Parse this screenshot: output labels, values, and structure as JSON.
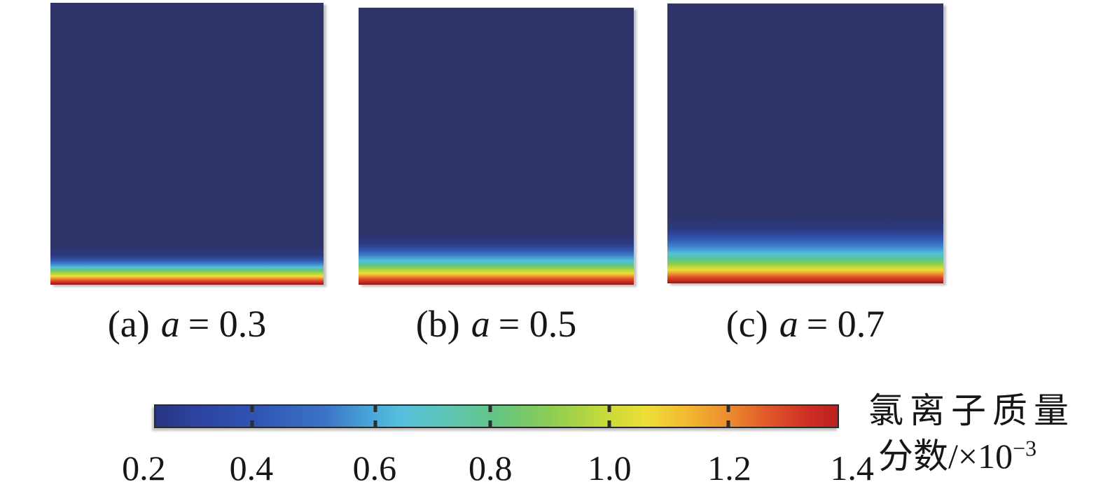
{
  "figure": {
    "background_color": "#ffffff",
    "text_color": "#161616",
    "panel_base_color": "#2e3368"
  },
  "panels": [
    {
      "id": "a",
      "marker": "(a)",
      "variable": "a",
      "eq_value": "= 0.3",
      "gradient": [
        [
          "#2e3368",
          0
        ],
        [
          "#2e3368",
          86
        ],
        [
          "#2b3a7f",
          89.5
        ],
        [
          "#2f55ae",
          91.3
        ],
        [
          "#3c7cc8",
          92.5
        ],
        [
          "#52c0da",
          93.8
        ],
        [
          "#5cc48f",
          94.6
        ],
        [
          "#7cca58",
          95.3
        ],
        [
          "#c6d93c",
          96.3
        ],
        [
          "#eede37",
          97.0
        ],
        [
          "#ec9130",
          97.8
        ],
        [
          "#df4b27",
          98.6
        ],
        [
          "#c52622",
          99.3
        ],
        [
          "#801c19",
          100
        ]
      ]
    },
    {
      "id": "b",
      "marker": "(b)",
      "variable": "a",
      "eq_value": "= 0.5",
      "gradient": [
        [
          "#2e3368",
          0
        ],
        [
          "#2e3368",
          81
        ],
        [
          "#2b3a7f",
          85
        ],
        [
          "#2f55ae",
          87.5
        ],
        [
          "#3c7cc8",
          89.3
        ],
        [
          "#52c0da",
          91.3
        ],
        [
          "#5cc48f",
          92.8
        ],
        [
          "#8ccd4f",
          94
        ],
        [
          "#c6d93c",
          95
        ],
        [
          "#eede37",
          95.9
        ],
        [
          "#ec9130",
          97
        ],
        [
          "#df4b27",
          98
        ],
        [
          "#c52622",
          99.2
        ],
        [
          "#801c19",
          100
        ]
      ]
    },
    {
      "id": "c",
      "marker": "(c)",
      "variable": "a",
      "eq_value": "= 0.7",
      "gradient": [
        [
          "#2e3368",
          0
        ],
        [
          "#2e3368",
          76
        ],
        [
          "#2b3a7f",
          80.5
        ],
        [
          "#2f55ae",
          84
        ],
        [
          "#3c7cc8",
          86.5
        ],
        [
          "#52c0da",
          89.3
        ],
        [
          "#5cc48f",
          91.3
        ],
        [
          "#8ccd4f",
          93
        ],
        [
          "#c6d93c",
          94.3
        ],
        [
          "#eede37",
          95.3
        ],
        [
          "#ec9130",
          96.6
        ],
        [
          "#df4b27",
          97.9
        ],
        [
          "#c52622",
          99.1
        ],
        [
          "#801c19",
          100
        ]
      ]
    }
  ],
  "colorbar": {
    "ticks": [
      "0.2",
      "0.4",
      "0.6",
      "0.8",
      "1.0",
      "1.2",
      "1.4"
    ],
    "tick_label_percents": [
      -1.5,
      14.2,
      32.2,
      49.1,
      66.5,
      84.0,
      101.9
    ],
    "notch_percents": [
      14.2,
      32.2,
      49.1,
      66.5,
      84.0
    ],
    "label_line1": "氯离子质量",
    "label_line2_base": "分数/×10",
    "label_line2_exp": "−3",
    "gradient": [
      [
        "#273583",
        0
      ],
      [
        "#2c439f",
        6
      ],
      [
        "#2f55b4",
        15
      ],
      [
        "#3b74c6",
        25
      ],
      [
        "#47a3d9",
        31
      ],
      [
        "#55c0dd",
        36
      ],
      [
        "#5fc6b5",
        43
      ],
      [
        "#63c584",
        50
      ],
      [
        "#8ccd51",
        58
      ],
      [
        "#c8da3b",
        66
      ],
      [
        "#eede37",
        72
      ],
      [
        "#f2b831",
        78
      ],
      [
        "#ec8c2e",
        84
      ],
      [
        "#e05529",
        90
      ],
      [
        "#cd2d24",
        96
      ],
      [
        "#bb2120",
        100
      ]
    ]
  },
  "chart_data": {
    "type": "heatmap",
    "title": "",
    "description": "Three simulated chloride-ion mass-fraction fields for different values of parameter a; high concentration (red, 1.4×10⁻³) at the bottom exposure surface grading to low ambient concentration (dark navy, ≤0.2×10⁻³) above; penetration depth grows with a.",
    "panels": [
      {
        "label": "(a) a = 0.3",
        "a": 0.3,
        "front_start_fraction_of_height": 0.9,
        "field": "uniform 0.2e-3 above front, graded 0.2e-3→1.4e-3 from front to bottom surface"
      },
      {
        "label": "(b) a = 0.5",
        "a": 0.5,
        "front_start_fraction_of_height": 0.85,
        "field": "uniform 0.2e-3 above front, graded 0.2e-3→1.4e-3 from front to bottom surface"
      },
      {
        "label": "(c) a = 0.7",
        "a": 0.7,
        "front_start_fraction_of_height": 0.8,
        "field": "uniform 0.2e-3 above front, graded 0.2e-3→1.4e-3 from front to bottom surface"
      }
    ],
    "colorbar": {
      "label": "氯离子质量分数/×10⁻³",
      "range": [
        0.2,
        1.4
      ],
      "tick_values": [
        0.2,
        0.4,
        0.6,
        0.8,
        1.0,
        1.2,
        1.4
      ],
      "colormap": "rainbow (dark blue → blue → cyan → green → yellow → orange → red)",
      "orientation": "horizontal",
      "legend_position": "bottom-right"
    },
    "grid": false
  }
}
